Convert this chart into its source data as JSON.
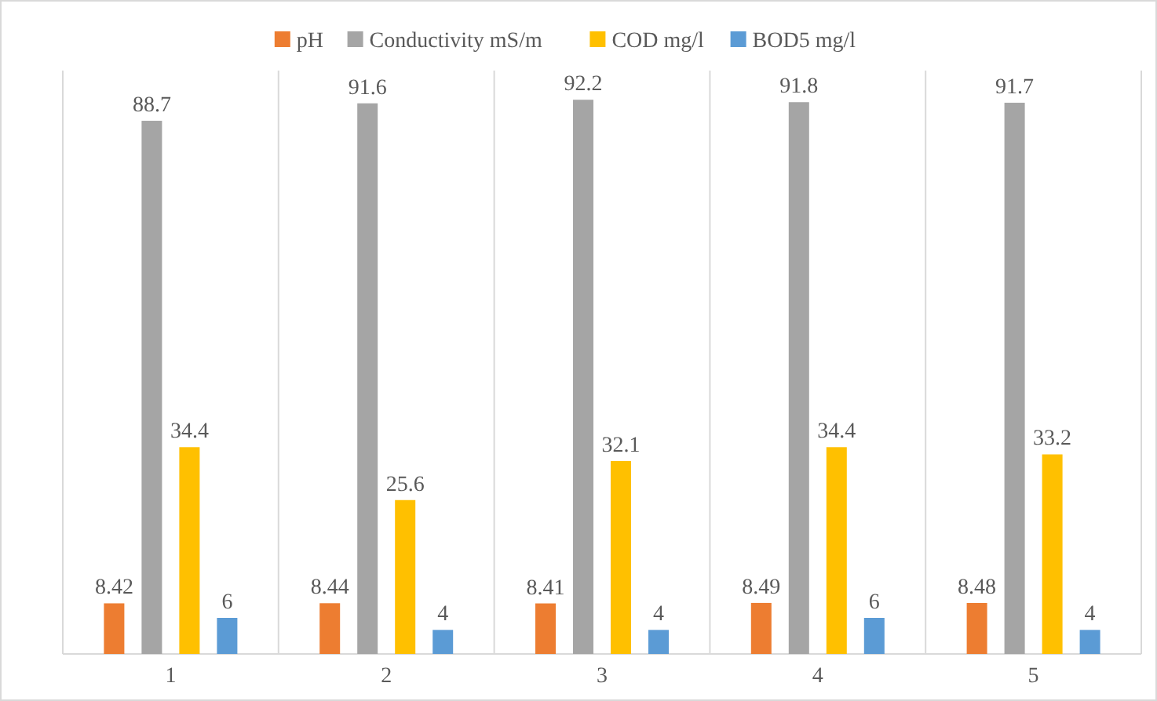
{
  "chart_data": {
    "type": "bar",
    "categories": [
      "1",
      "2",
      "3",
      "4",
      "5"
    ],
    "series": [
      {
        "name": "pH",
        "color": "#ed7d31",
        "values": [
          8.42,
          8.44,
          8.41,
          8.49,
          8.48
        ]
      },
      {
        "name": "Conductivity mS/m",
        "color": "#a5a5a5",
        "values": [
          88.7,
          91.6,
          92.2,
          91.8,
          91.7
        ]
      },
      {
        "name": "COD mg/l",
        "color": "#ffc000",
        "values": [
          34.4,
          25.6,
          32.1,
          34.4,
          33.2
        ]
      },
      {
        "name": "BOD5 mg/l",
        "color": "#5b9bd5",
        "values": [
          6,
          4,
          4,
          6,
          4
        ]
      }
    ],
    "data_labels": true,
    "grid": "x",
    "legend": "top"
  }
}
